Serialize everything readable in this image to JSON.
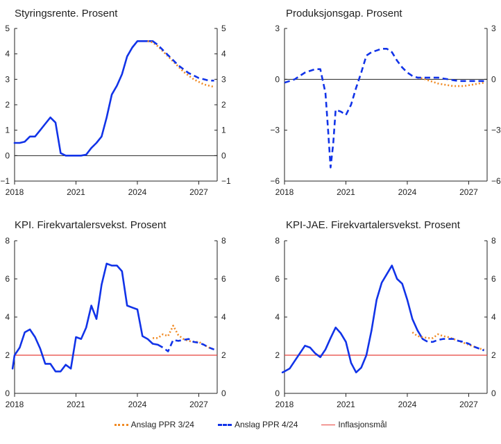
{
  "colors": {
    "history": "#1133e8",
    "ppr3": "#f08a24",
    "ppr4": "#1133e8",
    "target": "#e8403a",
    "zero": "#222222"
  },
  "legend": [
    {
      "label": "Anslag PPR 3/24",
      "style": "dotted",
      "color": "#f08a24"
    },
    {
      "label": "Anslag PPR 4/24",
      "style": "dashed",
      "color": "#1133e8"
    },
    {
      "label": "Inflasjonsmål",
      "style": "solid",
      "color": "#e8403a"
    }
  ],
  "chart_data": [
    {
      "type": "line",
      "title": "Styringsrente. Prosent",
      "xlim": [
        2018.0,
        2027.9
      ],
      "xticks": [
        2018,
        2021,
        2024,
        2027
      ],
      "ylim": [
        -1,
        5
      ],
      "yticks": [
        -1,
        0,
        1,
        2,
        3,
        4,
        5
      ],
      "ytick_labels": [
        "−1",
        "0",
        "1",
        "2",
        "3",
        "4",
        "5"
      ],
      "zero_line": true,
      "series": [
        {
          "role": "history",
          "style": "solid",
          "x": [
            2018.0,
            2018.25,
            2018.5,
            2018.75,
            2019.0,
            2019.25,
            2019.5,
            2019.75,
            2020.0,
            2020.25,
            2020.5,
            2020.75,
            2021.0,
            2021.25,
            2021.5,
            2021.75,
            2022.0,
            2022.25,
            2022.5,
            2022.75,
            2023.0,
            2023.25,
            2023.5,
            2023.75,
            2024.0,
            2024.25,
            2024.5,
            2024.75
          ],
          "y": [
            0.5,
            0.5,
            0.55,
            0.75,
            0.75,
            1.0,
            1.25,
            1.5,
            1.3,
            0.1,
            0.0,
            0.0,
            0.0,
            0.0,
            0.04,
            0.3,
            0.5,
            0.75,
            1.5,
            2.4,
            2.75,
            3.2,
            3.9,
            4.25,
            4.5,
            4.5,
            4.5,
            4.5
          ]
        },
        {
          "role": "ppr3",
          "style": "dotted",
          "x": [
            2024.5,
            2024.75,
            2025.0,
            2025.25,
            2025.5,
            2025.75,
            2026.0,
            2026.25,
            2026.5,
            2026.75,
            2027.0,
            2027.25,
            2027.5,
            2027.75
          ],
          "y": [
            4.5,
            4.45,
            4.3,
            4.1,
            3.9,
            3.7,
            3.5,
            3.3,
            3.15,
            3.0,
            2.9,
            2.8,
            2.75,
            2.7
          ]
        },
        {
          "role": "ppr4",
          "style": "dashed",
          "x": [
            2024.75,
            2025.0,
            2025.25,
            2025.5,
            2025.75,
            2026.0,
            2026.25,
            2026.5,
            2026.75,
            2027.0,
            2027.25,
            2027.5,
            2027.75
          ],
          "y": [
            4.5,
            4.35,
            4.15,
            3.95,
            3.75,
            3.55,
            3.4,
            3.25,
            3.15,
            3.05,
            3.0,
            2.95,
            2.95
          ]
        }
      ]
    },
    {
      "type": "line",
      "title": "Produksjonsgap. Prosent",
      "xlim": [
        2018.0,
        2027.9
      ],
      "xticks": [
        2018,
        2021,
        2024,
        2027
      ],
      "ylim": [
        -6,
        3
      ],
      "yticks": [
        -6,
        -3,
        0,
        3
      ],
      "ytick_labels": [
        "−6",
        "−3",
        "0",
        "3"
      ],
      "zero_line": true,
      "series": [
        {
          "role": "ppr3",
          "style": "dotted",
          "x": [
            2024.5,
            2024.75,
            2025.0,
            2025.25,
            2025.5,
            2025.75,
            2026.0,
            2026.25,
            2026.5,
            2026.75,
            2027.0,
            2027.25,
            2027.5,
            2027.75
          ],
          "y": [
            0.1,
            0.05,
            -0.05,
            -0.15,
            -0.25,
            -0.3,
            -0.35,
            -0.4,
            -0.4,
            -0.4,
            -0.35,
            -0.3,
            -0.25,
            -0.2
          ]
        },
        {
          "role": "ppr4",
          "style": "dashed",
          "x": [
            2018.0,
            2018.25,
            2018.5,
            2018.75,
            2019.0,
            2019.25,
            2019.5,
            2019.75,
            2020.0,
            2020.12,
            2020.25,
            2020.38,
            2020.5,
            2020.75,
            2021.0,
            2021.25,
            2021.5,
            2021.75,
            2022.0,
            2022.25,
            2022.5,
            2022.75,
            2023.0,
            2023.25,
            2023.5,
            2023.75,
            2024.0,
            2024.25,
            2024.5,
            2024.75,
            2025.0,
            2025.25,
            2025.5,
            2025.75,
            2026.0,
            2026.25,
            2026.5,
            2026.75,
            2027.0,
            2027.25,
            2027.5,
            2027.75
          ],
          "y": [
            -0.2,
            -0.1,
            0.0,
            0.2,
            0.4,
            0.5,
            0.6,
            0.6,
            -0.8,
            -2.8,
            -5.2,
            -3.8,
            -1.8,
            -1.9,
            -2.1,
            -1.5,
            -0.5,
            0.4,
            1.4,
            1.6,
            1.7,
            1.8,
            1.8,
            1.6,
            1.1,
            0.7,
            0.4,
            0.2,
            0.1,
            0.1,
            0.1,
            0.1,
            0.1,
            0.05,
            0.0,
            -0.05,
            -0.1,
            -0.1,
            -0.1,
            -0.1,
            -0.1,
            -0.1
          ]
        }
      ]
    },
    {
      "type": "line",
      "title": "KPI. Firekvartalersvekst. Prosent",
      "xlim": [
        2018.0,
        2027.9
      ],
      "xticks": [
        2018,
        2021,
        2024,
        2027
      ],
      "ylim": [
        0,
        8
      ],
      "yticks": [
        0,
        2,
        4,
        6,
        8
      ],
      "ytick_labels": [
        "0",
        "2",
        "4",
        "6",
        "8"
      ],
      "target": 2,
      "series": [
        {
          "role": "history",
          "style": "solid",
          "x": [
            2017.75,
            2018.0,
            2018.25,
            2018.5,
            2018.75,
            2019.0,
            2019.25,
            2019.5,
            2019.75,
            2020.0,
            2020.25,
            2020.5,
            2020.75,
            2021.0,
            2021.25,
            2021.5,
            2021.75,
            2022.0,
            2022.25,
            2022.5,
            2022.75,
            2023.0,
            2023.25,
            2023.5,
            2023.75,
            2024.0,
            2024.25,
            2024.5,
            2024.75,
            2025.0
          ],
          "y": [
            1.3,
            2.0,
            2.4,
            3.2,
            3.35,
            2.95,
            2.35,
            1.55,
            1.55,
            1.15,
            1.15,
            1.5,
            1.3,
            2.95,
            2.85,
            3.45,
            4.6,
            3.9,
            5.7,
            6.8,
            6.7,
            6.7,
            6.4,
            4.6,
            4.5,
            4.4,
            3.0,
            2.85,
            2.6,
            2.55
          ]
        },
        {
          "role": "ppr3",
          "style": "dotted",
          "x": [
            2024.75,
            2025.0,
            2025.25,
            2025.5,
            2025.75,
            2026.0,
            2026.25,
            2026.5,
            2026.75,
            2027.0,
            2027.25,
            2027.5,
            2027.75
          ],
          "y": [
            2.9,
            2.9,
            3.1,
            3.0,
            3.55,
            3.05,
            2.85,
            2.75,
            2.7,
            2.7,
            2.55,
            2.4,
            2.3
          ]
        },
        {
          "role": "ppr4",
          "style": "dashed",
          "x": [
            2025.0,
            2025.25,
            2025.5,
            2025.75,
            2026.0,
            2026.25,
            2026.5,
            2026.75,
            2027.0,
            2027.25,
            2027.5,
            2027.75
          ],
          "y": [
            2.55,
            2.4,
            2.2,
            2.8,
            2.75,
            2.8,
            2.85,
            2.7,
            2.65,
            2.55,
            2.4,
            2.3
          ]
        }
      ]
    },
    {
      "type": "line",
      "title": "KPI-JAE. Firekvartalersvekst. Prosent",
      "xlim": [
        2018.0,
        2027.9
      ],
      "xticks": [
        2018,
        2021,
        2024,
        2027
      ],
      "ylim": [
        0,
        8
      ],
      "yticks": [
        0,
        2,
        4,
        6,
        8
      ],
      "ytick_labels": [
        "0",
        "2",
        "4",
        "6",
        "8"
      ],
      "target": 2,
      "series": [
        {
          "role": "history",
          "style": "solid",
          "x": [
            2017.75,
            2018.0,
            2018.25,
            2018.5,
            2018.75,
            2019.0,
            2019.25,
            2019.5,
            2019.75,
            2020.0,
            2020.25,
            2020.5,
            2020.75,
            2021.0,
            2021.25,
            2021.5,
            2021.75,
            2022.0,
            2022.25,
            2022.5,
            2022.75,
            2023.0,
            2023.25,
            2023.5,
            2023.75,
            2024.0,
            2024.25,
            2024.5,
            2024.75
          ],
          "y": [
            1.1,
            1.15,
            1.3,
            1.7,
            2.1,
            2.5,
            2.4,
            2.1,
            1.9,
            2.3,
            2.9,
            3.45,
            3.15,
            2.7,
            1.6,
            1.1,
            1.35,
            2.0,
            3.3,
            4.9,
            5.8,
            6.25,
            6.7,
            6.0,
            5.75,
            4.9,
            3.9,
            3.3,
            2.85
          ]
        },
        {
          "role": "ppr3",
          "style": "dotted",
          "x": [
            2024.25,
            2024.5,
            2024.75,
            2025.0,
            2025.25,
            2025.5,
            2025.75,
            2026.0,
            2026.25,
            2026.5,
            2026.75,
            2027.0,
            2027.25,
            2027.5,
            2027.75
          ],
          "y": [
            3.2,
            3.0,
            2.95,
            2.9,
            2.9,
            3.1,
            3.0,
            2.95,
            2.85,
            2.75,
            2.65,
            2.55,
            2.45,
            2.35,
            2.3
          ]
        },
        {
          "role": "ppr4",
          "style": "dashed",
          "x": [
            2024.75,
            2025.0,
            2025.25,
            2025.5,
            2025.75,
            2026.0,
            2026.25,
            2026.5,
            2026.75,
            2027.0,
            2027.25,
            2027.5,
            2027.75
          ],
          "y": [
            2.85,
            2.7,
            2.7,
            2.8,
            2.85,
            2.85,
            2.85,
            2.75,
            2.7,
            2.6,
            2.45,
            2.35,
            2.25
          ]
        }
      ]
    }
  ]
}
